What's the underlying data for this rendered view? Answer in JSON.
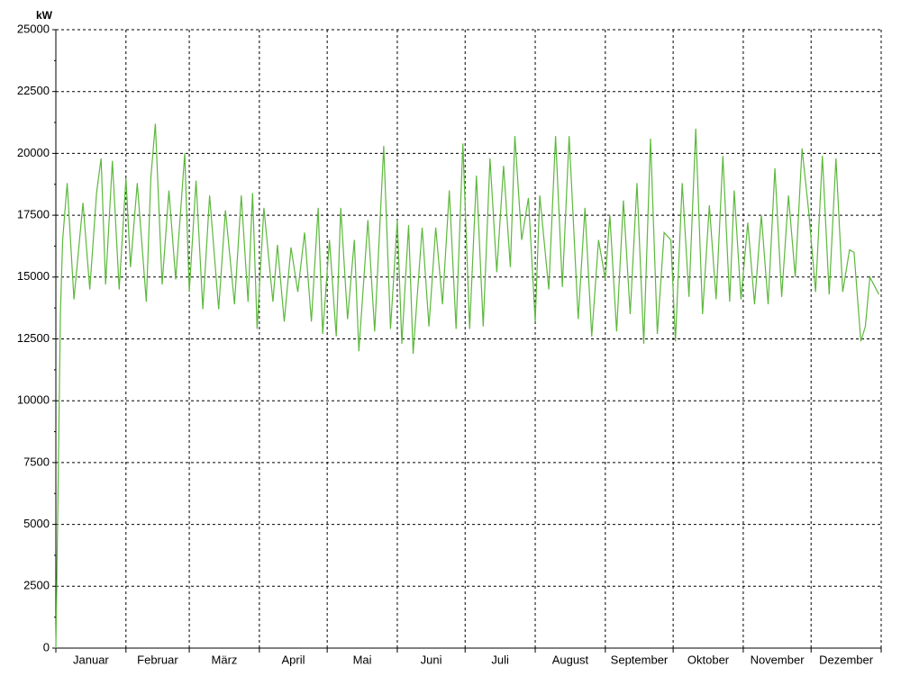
{
  "chart_data": {
    "type": "line",
    "y_label": "kW",
    "categories": [
      "Januar",
      "Februar",
      "März",
      "April",
      "Mai",
      "Juni",
      "Juli",
      "August",
      "September",
      "Oktober",
      "November",
      "Dezember"
    ],
    "xlim": [
      0,
      365
    ],
    "xticks": [
      0,
      31,
      59,
      90,
      120,
      151,
      181,
      212,
      243,
      273,
      304,
      334,
      365
    ],
    "ylim": [
      0,
      25000
    ],
    "yticks": [
      0,
      2500,
      5000,
      7500,
      10000,
      12500,
      15000,
      17500,
      20000,
      22500,
      25000
    ],
    "grid": true,
    "series": [
      {
        "color": "#5cb83c",
        "x": [
          0,
          1,
          2,
          3,
          5,
          8,
          12,
          15,
          18,
          20,
          22,
          25,
          28,
          31,
          33,
          36,
          40,
          42,
          44,
          47,
          50,
          53,
          57,
          59,
          62,
          65,
          68,
          72,
          75,
          79,
          82,
          85,
          87,
          89,
          92,
          96,
          98,
          101,
          104,
          107,
          110,
          113,
          116,
          118,
          121,
          124,
          126,
          129,
          132,
          134,
          138,
          141,
          145,
          148,
          151,
          153,
          156,
          158,
          162,
          165,
          168,
          171,
          174,
          177,
          180,
          183,
          186,
          189,
          192,
          195,
          198,
          201,
          203,
          206,
          209,
          212,
          214,
          218,
          221,
          224,
          227,
          231,
          234,
          237,
          240,
          243,
          245,
          248,
          251,
          254,
          257,
          260,
          263,
          266,
          269,
          272,
          274,
          277,
          280,
          283,
          286,
          289,
          292,
          295,
          298,
          300,
          303,
          306,
          309,
          312,
          315,
          318,
          321,
          324,
          327,
          330,
          333,
          336,
          339,
          342,
          345,
          348,
          351,
          353,
          356,
          358,
          360,
          364
        ],
        "values": [
          0,
          6500,
          13500,
          16500,
          18800,
          14100,
          18000,
          14500,
          18400,
          19800,
          14700,
          19700,
          14500,
          19000,
          15400,
          18800,
          14000,
          19000,
          21200,
          14700,
          18500,
          14900,
          20000,
          14400,
          18900,
          13700,
          18300,
          13700,
          17700,
          13900,
          18300,
          14000,
          18400,
          12900,
          17800,
          14000,
          16300,
          13200,
          16200,
          14400,
          16800,
          13200,
          17800,
          12700,
          16500,
          12600,
          17800,
          13300,
          16500,
          12000,
          17300,
          12800,
          20300,
          12900,
          17300,
          12300,
          17100,
          11900,
          17000,
          13000,
          17000,
          13900,
          18500,
          12900,
          20400,
          12900,
          19100,
          13000,
          19800,
          15200,
          19500,
          15400,
          20700,
          16500,
          18200,
          13200,
          18300,
          14500,
          20700,
          14600,
          20700,
          13300,
          17800,
          12600,
          16500,
          14900,
          17500,
          12800,
          18100,
          13500,
          18800,
          12300,
          20600,
          12700,
          16800,
          16500,
          12400,
          18800,
          14200,
          21000,
          13500,
          17900,
          14100,
          19900,
          14000,
          18500,
          14100,
          17200,
          13900,
          17500,
          13900,
          19400,
          14200,
          18300,
          15000,
          20200,
          17600,
          14400,
          19900,
          14300,
          19800,
          14400,
          16100,
          16000,
          12400,
          13000,
          15000,
          14300
        ]
      }
    ]
  }
}
